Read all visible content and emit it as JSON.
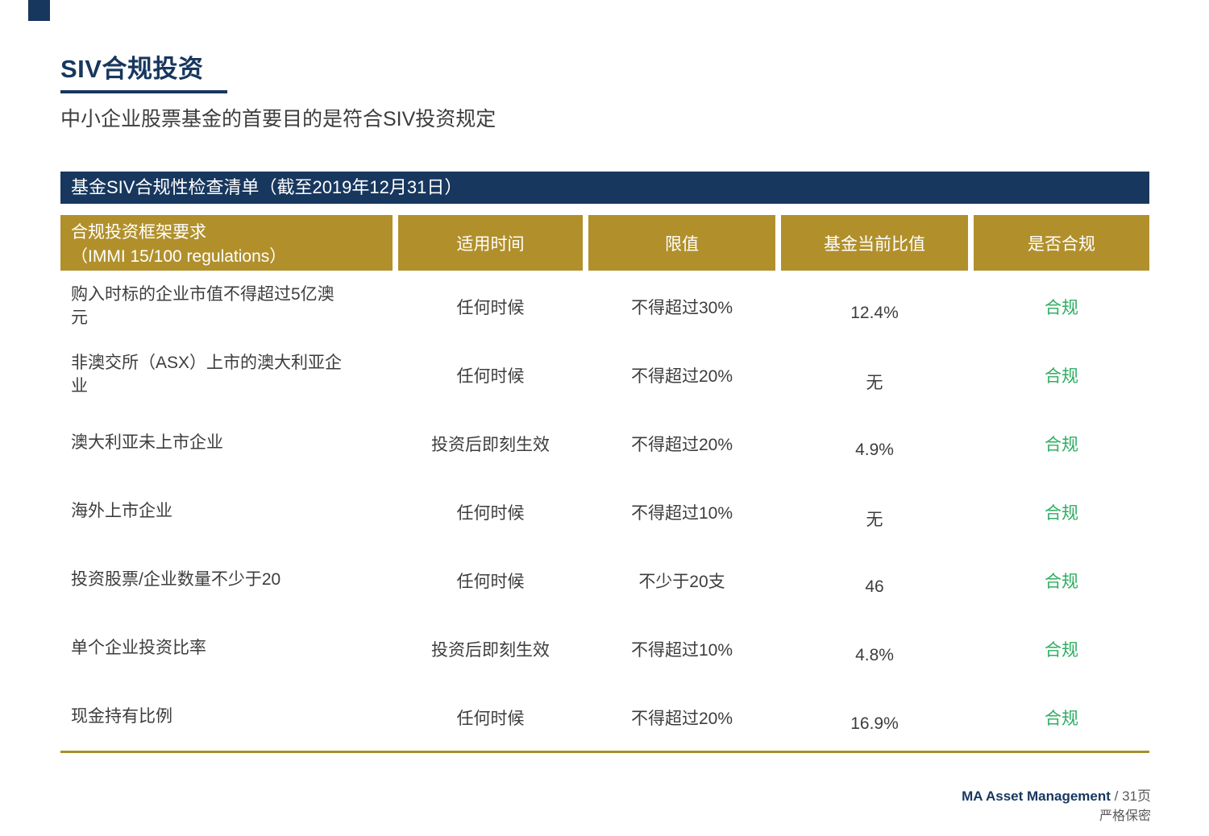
{
  "page": {
    "title": "SIV合规投资",
    "subtitle": "中小企业股票基金的首要目的是符合SIV投资规定"
  },
  "table": {
    "banner": "基金SIV合规性检查清单（截至2019年12月31日）",
    "columns": [
      "合规投资框架要求\n（IMMI 15/100 regulations）",
      "适用时间",
      "限值",
      "基金当前比值",
      "是否合规"
    ],
    "rows": [
      {
        "requirement": "购入时标的企业市值不得超过5亿澳\n元",
        "timing": "任何时候",
        "limit": "不得超过30%",
        "current": "12.4%",
        "compliant": "合规"
      },
      {
        "requirement": "非澳交所（ASX）上市的澳大利亚企\n业",
        "timing": "任何时候",
        "limit": "不得超过20%",
        "current": "无",
        "compliant": "合规"
      },
      {
        "requirement": "澳大利亚未上市企业",
        "timing": "投资后即刻生效",
        "limit": "不得超过20%",
        "current": "4.9%",
        "compliant": "合规"
      },
      {
        "requirement": "海外上市企业",
        "timing": "任何时候",
        "limit": "不得超过10%",
        "current": "无",
        "compliant": "合规"
      },
      {
        "requirement": "投资股票/企业数量不少于20",
        "timing": "任何时候",
        "limit": "不少于20支",
        "current": "46",
        "compliant": "合规"
      },
      {
        "requirement": "单个企业投资比率",
        "timing": "投资后即刻生效",
        "limit": "不得超过10%",
        "current": "4.8%",
        "compliant": "合规"
      },
      {
        "requirement": "现金持有比例",
        "timing": "任何时候",
        "limit": "不得超过20%",
        "current": "16.9%",
        "compliant": "合规"
      }
    ]
  },
  "footer": {
    "brand": "MA Asset Management",
    "page_label": "/ 31页",
    "confidential": "严格保密"
  },
  "colors": {
    "navy": "#17375E",
    "gold": "#B1902C",
    "green": "#2EAE62",
    "body_text": "#3D3D3D"
  }
}
